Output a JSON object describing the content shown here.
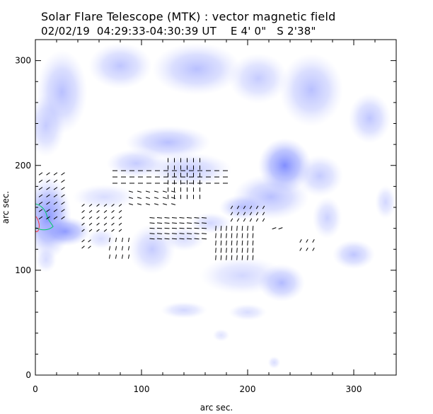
{
  "chart_data": {
    "type": "heatmap",
    "title": "Solar Flare Telescope (MTK) : vector magnetic field",
    "subtitle": "02/02/19  04:29:33-04:30:39 UT    E 4' 0\"   S 2'38\"",
    "xlabel": "arc sec.",
    "ylabel": "arc sec.",
    "xlim": [
      0,
      340
    ],
    "ylim": [
      0,
      320
    ],
    "xticks": [
      0,
      100,
      200,
      300
    ],
    "yticks": [
      0,
      100,
      200,
      300
    ],
    "colors": {
      "intensity": "#7f8cff",
      "vector": "#000000",
      "contour_green": "#00cc66",
      "contour_red": "#ff3333"
    },
    "heat_blobs": [
      {
        "x": 12,
        "y": 150,
        "rx": 22,
        "ry": 40,
        "a": 0.92
      },
      {
        "x": 28,
        "y": 137,
        "rx": 24,
        "ry": 14,
        "a": 0.85
      },
      {
        "x": 25,
        "y": 270,
        "rx": 24,
        "ry": 40,
        "a": 0.55
      },
      {
        "x": 10,
        "y": 238,
        "rx": 18,
        "ry": 30,
        "a": 0.45
      },
      {
        "x": 80,
        "y": 295,
        "rx": 30,
        "ry": 22,
        "a": 0.5
      },
      {
        "x": 152,
        "y": 292,
        "rx": 42,
        "ry": 25,
        "a": 0.55
      },
      {
        "x": 210,
        "y": 283,
        "rx": 28,
        "ry": 24,
        "a": 0.45
      },
      {
        "x": 260,
        "y": 272,
        "rx": 30,
        "ry": 35,
        "a": 0.55
      },
      {
        "x": 315,
        "y": 245,
        "rx": 20,
        "ry": 24,
        "a": 0.5
      },
      {
        "x": 235,
        "y": 200,
        "rx": 25,
        "ry": 26,
        "a": 0.98
      },
      {
        "x": 222,
        "y": 170,
        "rx": 36,
        "ry": 22,
        "a": 0.55
      },
      {
        "x": 268,
        "y": 190,
        "rx": 22,
        "ry": 20,
        "a": 0.45
      },
      {
        "x": 125,
        "y": 222,
        "rx": 40,
        "ry": 16,
        "a": 0.55
      },
      {
        "x": 145,
        "y": 196,
        "rx": 40,
        "ry": 16,
        "a": 0.45
      },
      {
        "x": 95,
        "y": 202,
        "rx": 28,
        "ry": 14,
        "a": 0.45
      },
      {
        "x": 195,
        "y": 160,
        "rx": 22,
        "ry": 12,
        "a": 0.55
      },
      {
        "x": 110,
        "y": 120,
        "rx": 22,
        "ry": 24,
        "a": 0.45
      },
      {
        "x": 140,
        "y": 130,
        "rx": 20,
        "ry": 12,
        "a": 0.3
      },
      {
        "x": 165,
        "y": 145,
        "rx": 20,
        "ry": 10,
        "a": 0.35
      },
      {
        "x": 232,
        "y": 88,
        "rx": 22,
        "ry": 18,
        "a": 0.6
      },
      {
        "x": 195,
        "y": 95,
        "rx": 40,
        "ry": 18,
        "a": 0.35
      },
      {
        "x": 300,
        "y": 115,
        "rx": 20,
        "ry": 14,
        "a": 0.5
      },
      {
        "x": 275,
        "y": 150,
        "rx": 14,
        "ry": 20,
        "a": 0.4
      },
      {
        "x": 65,
        "y": 170,
        "rx": 30,
        "ry": 12,
        "a": 0.3
      },
      {
        "x": 200,
        "y": 60,
        "rx": 18,
        "ry": 8,
        "a": 0.3
      },
      {
        "x": 140,
        "y": 62,
        "rx": 22,
        "ry": 8,
        "a": 0.35
      },
      {
        "x": 62,
        "y": 130,
        "rx": 14,
        "ry": 10,
        "a": 0.3
      },
      {
        "x": 10,
        "y": 110,
        "rx": 10,
        "ry": 12,
        "a": 0.3
      },
      {
        "x": 330,
        "y": 165,
        "rx": 10,
        "ry": 16,
        "a": 0.35
      },
      {
        "x": 175,
        "y": 38,
        "rx": 8,
        "ry": 6,
        "a": 0.25
      },
      {
        "x": 225,
        "y": 12,
        "rx": 6,
        "ry": 6,
        "a": 0.3
      }
    ],
    "vector_groups": [
      {
        "x0": 75,
        "x1": 180,
        "y0": 183,
        "y1": 198,
        "dx": 8,
        "dy": 6,
        "angle": 0,
        "len": 7
      },
      {
        "x0": 125,
        "x1": 155,
        "y0": 170,
        "y1": 210,
        "dx": 6,
        "dy": 7,
        "angle": 90,
        "len": 6
      },
      {
        "x0": 90,
        "x1": 135,
        "y0": 163,
        "y1": 175,
        "dx": 8,
        "dy": 6,
        "angle": -15,
        "len": 6
      },
      {
        "x0": 5,
        "x1": 30,
        "y0": 150,
        "y1": 195,
        "dx": 7,
        "dy": 7,
        "angle": 35,
        "len": 6
      },
      {
        "x0": 45,
        "x1": 85,
        "y0": 138,
        "y1": 162,
        "dx": 7,
        "dy": 6,
        "angle": 40,
        "len": 5
      },
      {
        "x0": 110,
        "x1": 165,
        "y0": 130,
        "y1": 150,
        "dx": 7,
        "dy": 5,
        "angle": -5,
        "len": 7
      },
      {
        "x0": 170,
        "x1": 205,
        "y0": 112,
        "y1": 145,
        "dx": 5,
        "dy": 7,
        "angle": 85,
        "len": 7
      },
      {
        "x0": 185,
        "x1": 215,
        "y0": 148,
        "y1": 162,
        "dx": 6,
        "dy": 6,
        "angle": 60,
        "len": 5
      },
      {
        "x0": 45,
        "x1": 55,
        "y0": 122,
        "y1": 130,
        "dx": 6,
        "dy": 6,
        "angle": 40,
        "len": 5
      },
      {
        "x0": 70,
        "x1": 90,
        "y0": 113,
        "y1": 135,
        "dx": 6,
        "dy": 8,
        "angle": 80,
        "len": 6
      },
      {
        "x0": 250,
        "x1": 265,
        "y0": 120,
        "y1": 135,
        "dx": 6,
        "dy": 8,
        "angle": 60,
        "len": 5
      },
      {
        "x0": 225,
        "x1": 235,
        "y0": 140,
        "y1": 140,
        "dx": 6,
        "dy": 6,
        "angle": 20,
        "len": 6
      }
    ]
  }
}
